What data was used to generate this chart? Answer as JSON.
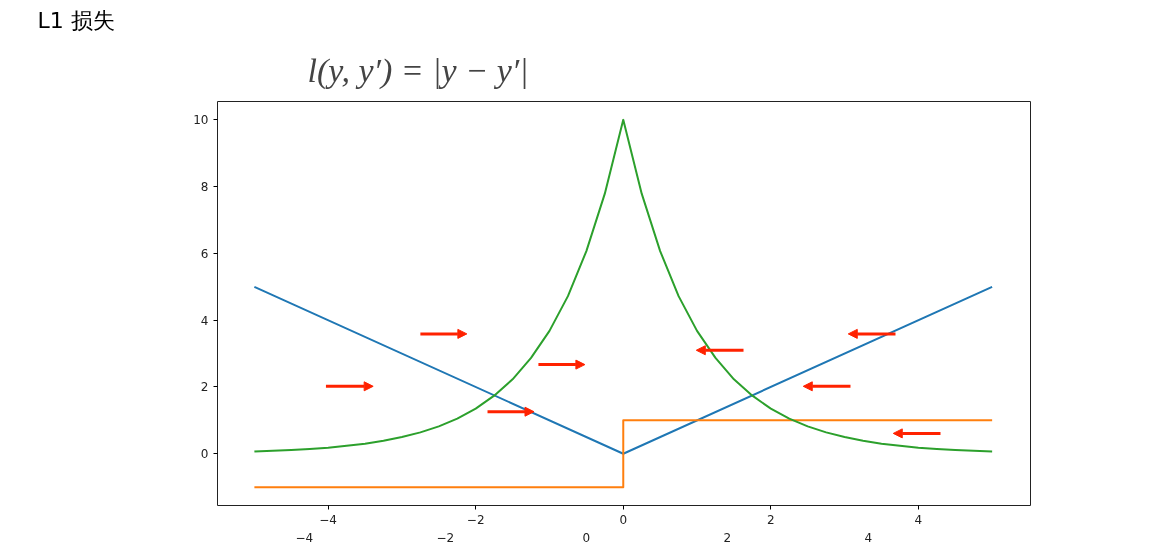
{
  "chart_data": {
    "type": "line",
    "title": "L1 损失",
    "subtitle": "l(y, y′) = |y − y′|",
    "series": [
      {
        "color": "#1f77b4",
        "x": [
          -5,
          0,
          5
        ],
        "values": [
          5,
          0,
          5
        ]
      },
      {
        "type": "step",
        "color": "#ff7f0e",
        "x": [
          -5,
          0,
          0,
          5
        ],
        "values": [
          -1,
          -1,
          1,
          1
        ]
      },
      {
        "color": "#2ca02c",
        "x": [
          -5,
          -4.75,
          -4.5,
          -4.25,
          -4,
          -3.75,
          -3.5,
          -3.25,
          -3,
          -2.75,
          -2.5,
          -2.25,
          -2,
          -1.75,
          -1.5,
          -1.25,
          -1,
          -0.75,
          -0.5,
          -0.25,
          0,
          0.25,
          0.5,
          0.75,
          1,
          1.25,
          1.5,
          1.75,
          2,
          2.25,
          2.5,
          2.75,
          3,
          3.25,
          3.5,
          3.75,
          4,
          4.25,
          4.5,
          4.75,
          5
        ],
        "values": [
          0.07,
          0.09,
          0.11,
          0.14,
          0.18,
          0.24,
          0.3,
          0.39,
          0.5,
          0.64,
          0.82,
          1.05,
          1.35,
          1.74,
          2.23,
          2.87,
          3.68,
          4.72,
          6.07,
          7.79,
          10,
          7.79,
          6.07,
          4.72,
          3.68,
          2.87,
          2.23,
          1.74,
          1.35,
          1.05,
          0.82,
          0.64,
          0.5,
          0.39,
          0.3,
          0.24,
          0.18,
          0.14,
          0.11,
          0.09,
          0.07
        ]
      }
    ],
    "xlim": [
      -5.5,
      5.52
    ],
    "ylim": [
      -1.55,
      10.55
    ],
    "xticks": [
      {
        "value": -4,
        "label": "−4"
      },
      {
        "value": -2,
        "label": "−2"
      },
      0,
      2,
      4
    ],
    "x2lim": [
      -5.23,
      6.3
    ],
    "x2ticks": [
      {
        "value": -4,
        "label": "−4"
      },
      {
        "value": -2,
        "label": "−2"
      },
      0,
      2,
      4
    ],
    "yticks": [
      0,
      2,
      4,
      6,
      8,
      10
    ]
  }
}
